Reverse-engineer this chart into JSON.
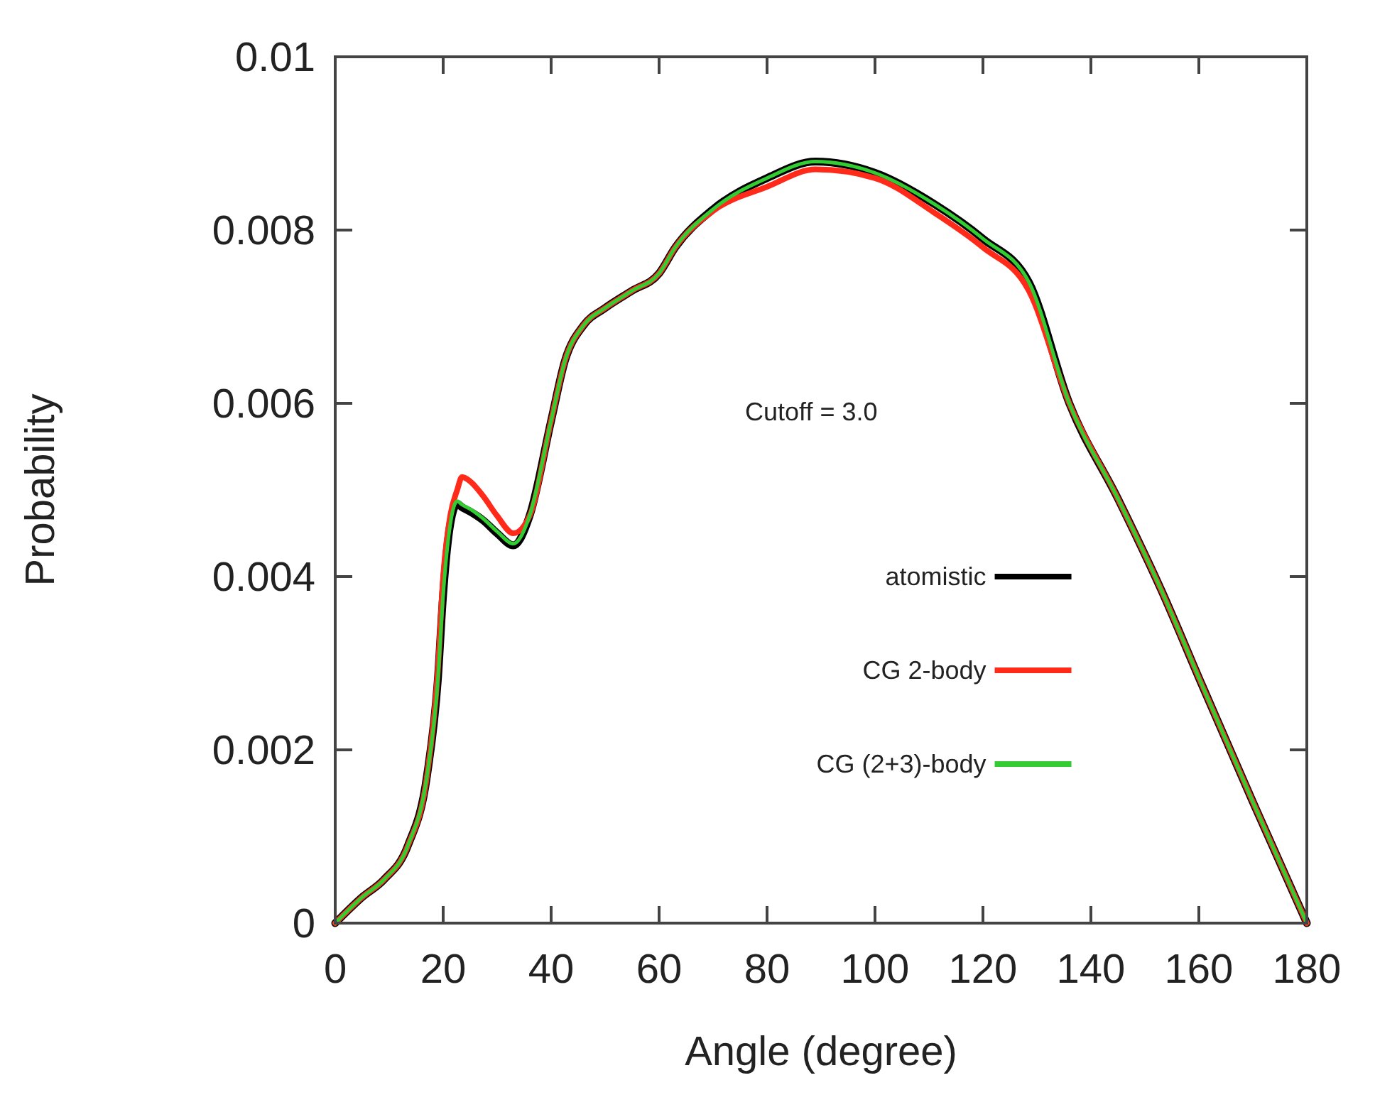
{
  "chart_data": {
    "type": "line",
    "xlabel": "Angle (degree)",
    "ylabel": "Probability",
    "x": [
      0,
      5,
      9,
      13.5,
      17,
      19,
      20,
      21.3,
      22.6,
      23.5,
      25,
      27.4,
      30,
      33,
      36,
      40,
      42.6,
      46,
      50,
      55,
      60,
      63,
      70,
      80,
      89,
      100,
      111,
      120,
      128.5,
      136,
      145,
      153,
      160.5,
      170,
      180
    ],
    "series": [
      {
        "name": "atomistic",
        "color": "#000000",
        "values": [
          0,
          0.0003,
          0.0005,
          0.0009,
          0.0017,
          0.0028,
          0.0038,
          0.0046,
          0.00484,
          0.0048,
          0.00475,
          0.00465,
          0.0045,
          0.00436,
          0.0047,
          0.0058,
          0.0065,
          0.0069,
          0.0071,
          0.0073,
          0.0075,
          0.0078,
          0.00824,
          0.0086,
          0.00879,
          0.00866,
          0.0083,
          0.0079,
          0.0074,
          0.006,
          0.0049,
          0.00385,
          0.00276,
          0.0014,
          0
        ]
      },
      {
        "name": "CG 2-body",
        "color": "#ff2a1a",
        "values": [
          0,
          0.0003,
          0.0005,
          0.0009,
          0.0017,
          0.0029,
          0.004,
          0.0047,
          0.005,
          0.00515,
          0.0051,
          0.00493,
          0.0047,
          0.0045,
          0.0047,
          0.0058,
          0.0065,
          0.0069,
          0.0071,
          0.0073,
          0.0075,
          0.0078,
          0.00822,
          0.0085,
          0.0087,
          0.0086,
          0.0082,
          0.0078,
          0.0073,
          0.006,
          0.0049,
          0.00385,
          0.00276,
          0.0014,
          0
        ]
      },
      {
        "name": "CG (2+3)-body",
        "color": "#33cc33",
        "values": [
          0,
          0.0003,
          0.0005,
          0.0009,
          0.0017,
          0.0028,
          0.0038,
          0.0046,
          0.00487,
          0.00483,
          0.00478,
          0.00467,
          0.00452,
          0.00438,
          0.0047,
          0.0058,
          0.0065,
          0.0069,
          0.0071,
          0.0073,
          0.0075,
          0.0078,
          0.00824,
          0.0086,
          0.00879,
          0.00866,
          0.0083,
          0.0079,
          0.0074,
          0.006,
          0.0049,
          0.00385,
          0.00276,
          0.0014,
          0
        ]
      }
    ],
    "xlim": [
      0,
      180
    ],
    "xticks": [
      0,
      20,
      40,
      60,
      80,
      100,
      120,
      140,
      160,
      180
    ],
    "ylim": [
      0,
      0.01
    ],
    "yticks": [
      0,
      0.002,
      0.004,
      0.006,
      0.008,
      0.01
    ],
    "annotations": [
      "Cutoff = 3.0"
    ],
    "legend": "right",
    "grid": false,
    "marker": "none",
    "line_style": "solid"
  }
}
